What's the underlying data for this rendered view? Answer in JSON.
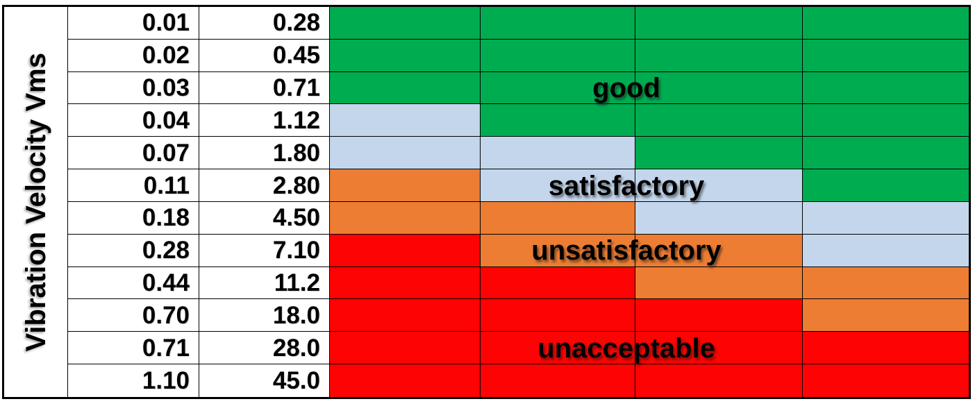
{
  "chart_data": {
    "type": "heatmap",
    "ylabel": "Vibration Velocity Vms",
    "zone_colors": {
      "good": "#00AC50",
      "satisfactory": "#C3D6EB",
      "unsatisfactory": "#EC7D33",
      "unacceptable": "#FD0303"
    },
    "grid_line_color": "#000000",
    "rows": [
      {
        "values": [
          "0.01",
          "0.28"
        ],
        "zones": [
          "good",
          "good",
          "good",
          "good"
        ]
      },
      {
        "values": [
          "0.02",
          "0.45"
        ],
        "zones": [
          "good",
          "good",
          "good",
          "good"
        ]
      },
      {
        "values": [
          "0.03",
          "0.71"
        ],
        "zones": [
          "good",
          "good",
          "good",
          "good"
        ]
      },
      {
        "values": [
          "0.04",
          "1.12"
        ],
        "zones": [
          "satisfactory",
          "good",
          "good",
          "good"
        ]
      },
      {
        "values": [
          "0.07",
          "1.80"
        ],
        "zones": [
          "satisfactory",
          "satisfactory",
          "good",
          "good"
        ]
      },
      {
        "values": [
          "0.11",
          "2.80"
        ],
        "zones": [
          "unsatisfactory",
          "satisfactory",
          "satisfactory",
          "good"
        ]
      },
      {
        "values": [
          "0.18",
          "4.50"
        ],
        "zones": [
          "unsatisfactory",
          "unsatisfactory",
          "satisfactory",
          "satisfactory"
        ]
      },
      {
        "values": [
          "0.28",
          "7.10"
        ],
        "zones": [
          "unacceptable",
          "unsatisfactory",
          "unsatisfactory",
          "satisfactory"
        ]
      },
      {
        "values": [
          "0.44",
          "11.2"
        ],
        "zones": [
          "unacceptable",
          "unacceptable",
          "unsatisfactory",
          "unsatisfactory"
        ]
      },
      {
        "values": [
          "0.70",
          "18.0"
        ],
        "zones": [
          "unacceptable",
          "unacceptable",
          "unacceptable",
          "unsatisfactory"
        ]
      },
      {
        "values": [
          "0.71",
          "28.0"
        ],
        "zones": [
          "unacceptable",
          "unacceptable",
          "unacceptable",
          "unacceptable"
        ]
      },
      {
        "values": [
          "1.10",
          "45.0"
        ],
        "zones": [
          "unacceptable",
          "unacceptable",
          "unacceptable",
          "unacceptable"
        ]
      }
    ],
    "zone_labels": [
      {
        "text": "good",
        "row": 3
      },
      {
        "text": "satisfactory",
        "row": 6
      },
      {
        "text": "unsatisfactory",
        "row": 8
      },
      {
        "text": "unacceptable",
        "row": 11
      }
    ]
  }
}
